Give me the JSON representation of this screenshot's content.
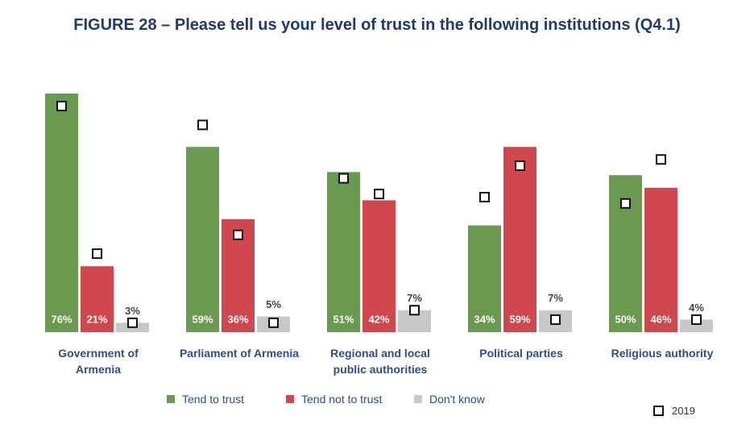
{
  "chart_data": {
    "type": "bar",
    "title": "FIGURE 28 – Please tell us your level of trust in the following institutions (Q4.1)",
    "categories": [
      "Government of Armenia",
      "Parliament of Armenia",
      "Regional and local public authorities",
      "Political parties",
      "Religious authority"
    ],
    "series": [
      {
        "name": "Tend to trust",
        "color": "#6a9a50",
        "values": [
          76,
          59,
          51,
          34,
          50
        ],
        "value_labels": [
          "76%",
          "59%",
          "51%",
          "34%",
          "50%"
        ]
      },
      {
        "name": "Tend not to trust",
        "color": "#d0484e",
        "values": [
          21,
          36,
          42,
          59,
          46
        ],
        "value_labels": [
          "21%",
          "36%",
          "42%",
          "59%",
          "46%"
        ]
      },
      {
        "name": "Don't know",
        "color": "#c8c8c8",
        "values": [
          3,
          5,
          7,
          7,
          4
        ],
        "value_labels": [
          "3%",
          "5%",
          "7%",
          "7%",
          "4%"
        ]
      }
    ],
    "comparison": {
      "name": "2019",
      "values": [
        [
          72,
          66,
          49,
          43,
          41
        ],
        [
          25,
          31,
          44,
          53,
          55
        ],
        [
          3,
          3,
          7,
          4,
          4
        ]
      ]
    },
    "ylim": [
      0,
      80
    ]
  }
}
